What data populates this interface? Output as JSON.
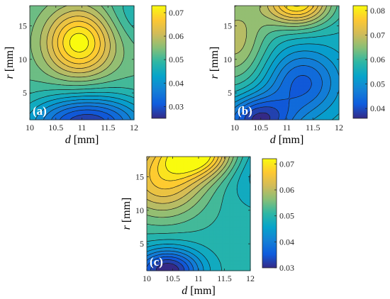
{
  "chart_data": [
    {
      "type": "contour",
      "panel_label": "(a)",
      "xlabel": {
        "var": "d",
        "unit": "[mm]"
      },
      "ylabel": {
        "var": "r",
        "unit": "[mm]"
      },
      "xlim": [
        10,
        12
      ],
      "ylim": [
        1,
        18
      ],
      "xticks": [
        "10",
        "10.5",
        "11",
        "11.5",
        "12"
      ],
      "yticks": [
        "5",
        "10",
        "15"
      ],
      "ytick_values": [
        5,
        10,
        15
      ],
      "colorbar": {
        "clim": [
          0.025,
          0.073
        ],
        "ticks": [
          "0.03",
          "0.04",
          "0.05",
          "0.06",
          "0.07"
        ],
        "tick_values": [
          0.03,
          0.04,
          0.05,
          0.06,
          0.07
        ]
      },
      "field": {
        "base": 0.052,
        "gx": 0.0,
        "gy": 0.0,
        "bumps": [
          {
            "x": 10.95,
            "y": 12.5,
            "sx": 0.45,
            "sy": 3.5,
            "amp": 0.02
          },
          {
            "x": 11.1,
            "y": 0.5,
            "sx": 0.8,
            "sy": 3.0,
            "amp": -0.024
          },
          {
            "x": 12.2,
            "y": 17.0,
            "sx": 0.5,
            "sy": 3.0,
            "amp": -0.006
          }
        ]
      }
    },
    {
      "type": "contour",
      "panel_label": "(b)",
      "xlabel": {
        "var": "d",
        "unit": "[mm]"
      },
      "ylabel": {
        "var": "r",
        "unit": "[mm]"
      },
      "xlim": [
        10,
        12
      ],
      "ylim": [
        1,
        18
      ],
      "xticks": [
        "10",
        "10.5",
        "11",
        "11.5",
        "12"
      ],
      "yticks": [
        "5",
        "10",
        "15"
      ],
      "ytick_values": [
        5,
        10,
        15
      ],
      "colorbar": {
        "clim": [
          0.036,
          0.082
        ],
        "ticks": [
          "0.04",
          "0.05",
          "0.06",
          "0.07",
          "0.08"
        ],
        "tick_values": [
          0.04,
          0.05,
          0.06,
          0.07,
          0.08
        ]
      },
      "field": {
        "base": 0.056,
        "gx": 0.0,
        "gy": 0.0,
        "bumps": [
          {
            "x": 11.2,
            "y": 18.5,
            "sx": 0.45,
            "sy": 2.5,
            "amp": 0.024
          },
          {
            "x": 10.0,
            "y": 13.0,
            "sx": 0.45,
            "sy": 5.0,
            "amp": 0.012
          },
          {
            "x": 10.45,
            "y": 1.0,
            "sx": 0.45,
            "sy": 2.5,
            "amp": -0.018
          },
          {
            "x": 11.3,
            "y": 6.5,
            "sx": 0.5,
            "sy": 3.5,
            "amp": -0.013
          }
        ]
      }
    },
    {
      "type": "contour",
      "panel_label": "(c)",
      "xlabel": {
        "var": "d",
        "unit": "[mm]"
      },
      "ylabel": {
        "var": "r",
        "unit": "[mm]"
      },
      "xlim": [
        10,
        12
      ],
      "ylim": [
        1,
        18
      ],
      "xticks": [
        "10",
        "10.5",
        "11",
        "11.5",
        "12"
      ],
      "yticks": [
        "5",
        "10",
        "15"
      ],
      "ytick_values": [
        5,
        10,
        15
      ],
      "colorbar": {
        "clim": [
          0.03,
          0.072
        ],
        "ticks": [
          "0.03",
          "0.04",
          "0.05",
          "0.06",
          "0.07"
        ],
        "tick_values": [
          0.03,
          0.04,
          0.05,
          0.06,
          0.07
        ]
      },
      "field": {
        "base": 0.05,
        "gx": 0.0,
        "gy": 0.0,
        "bumps": [
          {
            "x": 11.0,
            "y": 18.5,
            "sx": 0.5,
            "sy": 2.5,
            "amp": 0.02
          },
          {
            "x": 10.3,
            "y": 14.5,
            "sx": 0.6,
            "sy": 4.0,
            "amp": 0.015
          },
          {
            "x": 10.4,
            "y": 1.0,
            "sx": 0.45,
            "sy": 2.3,
            "amp": -0.02
          },
          {
            "x": 12.3,
            "y": 16.0,
            "sx": 0.6,
            "sy": 3.5,
            "amp": -0.006
          }
        ]
      }
    }
  ]
}
